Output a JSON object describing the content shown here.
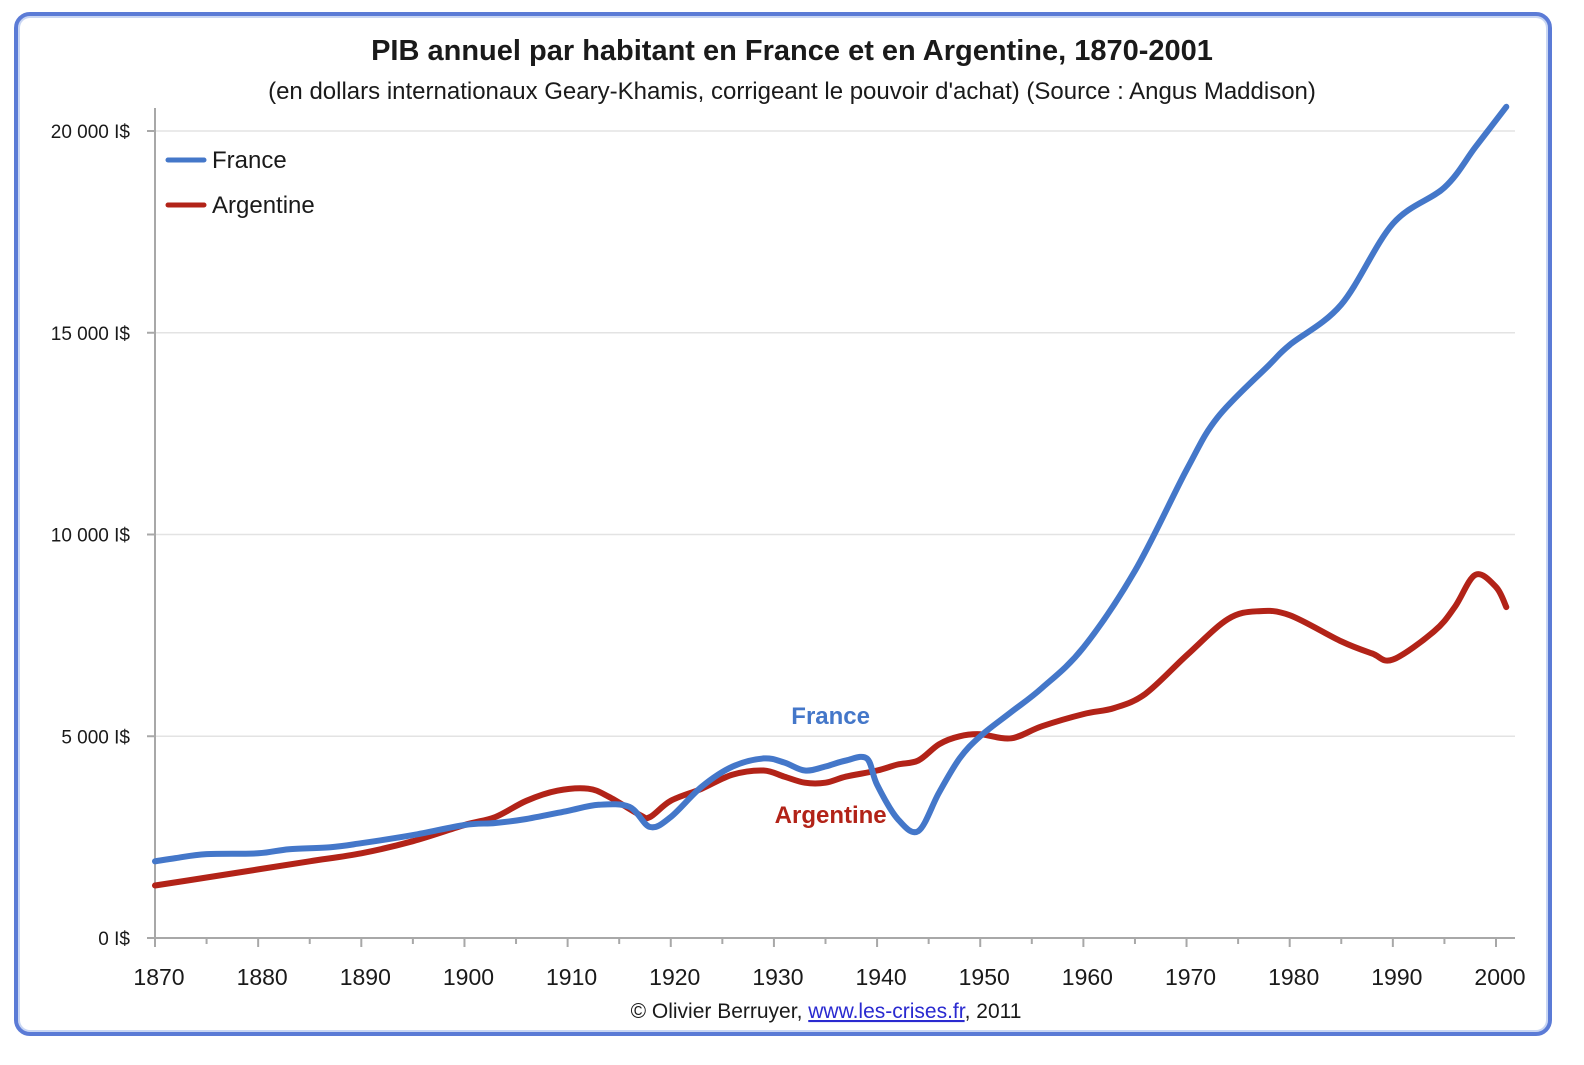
{
  "chart_data": {
    "type": "line",
    "title": "PIB annuel par habitant en France et en Argentine, 1870-2001",
    "subtitle": "(en dollars internationaux Geary-Khamis, corrigeant le pouvoir d'achat) (Source : Angus Maddison)",
    "xlabel": "",
    "ylabel": "",
    "xlim": [
      1870,
      2001
    ],
    "ylim": [
      0,
      20000
    ],
    "x_ticks": [
      1870,
      1880,
      1890,
      1900,
      1910,
      1920,
      1930,
      1940,
      1950,
      1960,
      1970,
      1980,
      1990,
      2000
    ],
    "x_tick_labels": [
      "1870",
      "1880",
      "1890",
      "1900",
      "1910",
      "1920",
      "1930",
      "1940",
      "1950",
      "1960",
      "1970",
      "1980",
      "1990",
      "2000"
    ],
    "y_ticks": [
      0,
      5000,
      10000,
      15000,
      20000
    ],
    "y_tick_labels": [
      "0 I$",
      "5 000 I$",
      "10 000 I$",
      "15 000 I$",
      "20 000 I$"
    ],
    "grid": "horizontal",
    "legend": "top-left",
    "series": [
      {
        "name": "France",
        "color": "#4477c9",
        "x": [
          1870,
          1872,
          1875,
          1880,
          1883,
          1887,
          1890,
          1895,
          1900,
          1903,
          1906,
          1910,
          1913,
          1916,
          1918,
          1920,
          1923,
          1926,
          1929,
          1931,
          1933,
          1935,
          1937,
          1939,
          1940,
          1942,
          1944,
          1946,
          1948,
          1950,
          1953,
          1956,
          1960,
          1965,
          1970,
          1973,
          1978,
          1980,
          1985,
          1990,
          1995,
          1998,
          2001
        ],
        "y": [
          1900,
          1980,
          2080,
          2100,
          2200,
          2250,
          2350,
          2550,
          2800,
          2850,
          2950,
          3150,
          3300,
          3250,
          2750,
          3000,
          3750,
          4250,
          4450,
          4350,
          4150,
          4250,
          4400,
          4450,
          3800,
          2950,
          2650,
          3600,
          4450,
          5000,
          5600,
          6200,
          7200,
          9100,
          11600,
          12900,
          14200,
          14700,
          15700,
          17700,
          18600,
          19600,
          20600
        ]
      },
      {
        "name": "Argentine",
        "color": "#b22318",
        "x": [
          1870,
          1875,
          1880,
          1885,
          1890,
          1895,
          1900,
          1903,
          1906,
          1909,
          1912,
          1914,
          1917,
          1918,
          1920,
          1923,
          1926,
          1929,
          1931,
          1933,
          1935,
          1937,
          1940,
          1942,
          1944,
          1946,
          1948,
          1950,
          1953,
          1956,
          1960,
          1963,
          1966,
          1970,
          1974,
          1977,
          1980,
          1985,
          1988,
          1990,
          1994,
          1996,
          1998,
          2000,
          2001
        ],
        "y": [
          1300,
          1500,
          1700,
          1900,
          2100,
          2400,
          2800,
          3000,
          3400,
          3650,
          3700,
          3500,
          3050,
          3000,
          3400,
          3700,
          4050,
          4150,
          4000,
          3850,
          3850,
          4000,
          4150,
          4300,
          4400,
          4800,
          5000,
          5050,
          4950,
          5250,
          5550,
          5700,
          6050,
          7000,
          7900,
          8100,
          8000,
          7350,
          7050,
          6900,
          7600,
          8200,
          9000,
          8700,
          8200
        ]
      }
    ],
    "annotations": [
      {
        "text": "France",
        "x": 1935.5,
        "y": 5300,
        "color": "#4477c9"
      },
      {
        "text": "Argentine",
        "x": 1935.5,
        "y": 2850,
        "color": "#b22318"
      }
    ],
    "credit": {
      "prefix": "© Olivier Berruyer, ",
      "link": "www.les-crises.fr",
      "suffix": ",  2011"
    }
  }
}
